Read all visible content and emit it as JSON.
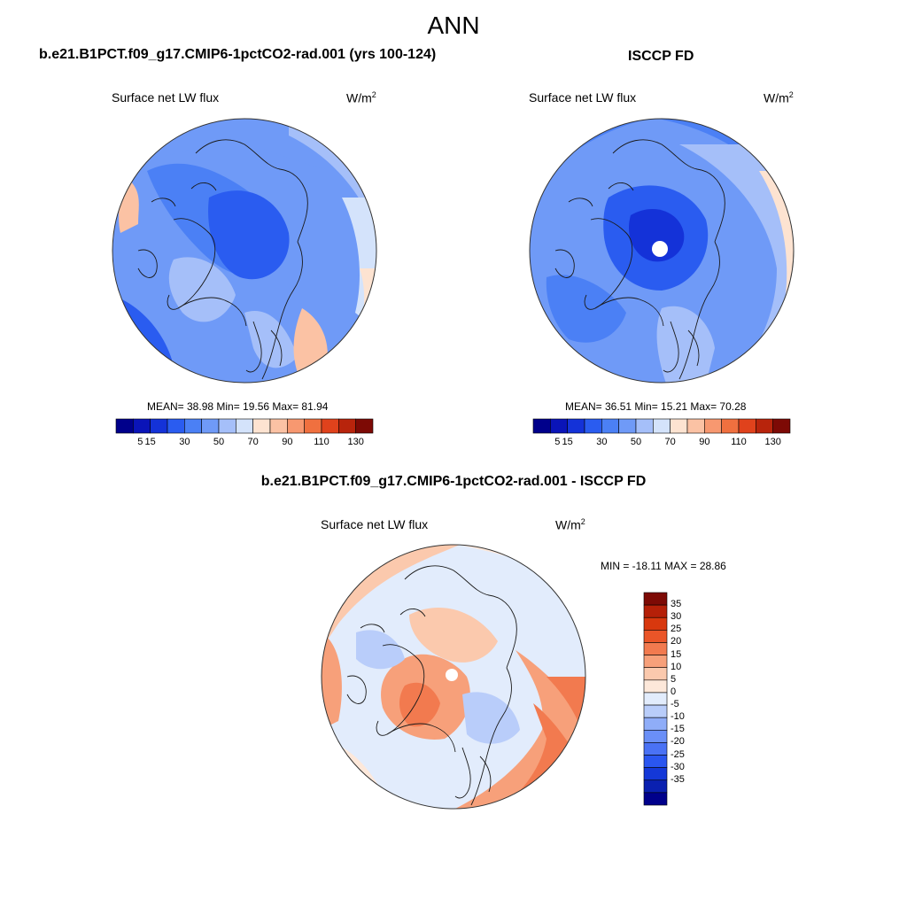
{
  "main_title": "ANN",
  "colors": {
    "abs_scale": [
      "#00008b",
      "#0a14b8",
      "#1432d8",
      "#2a5cf0",
      "#4b80f5",
      "#6f9af7",
      "#a5bff9",
      "#d4e3fb",
      "#fde3d1",
      "#fbc2a4",
      "#f79870",
      "#f0703f",
      "#e0421c",
      "#b8240c",
      "#7d0a05"
    ],
    "diff_scale": [
      "#00008b",
      "#0a20b0",
      "#1438d8",
      "#2a56f0",
      "#4a72f5",
      "#6a8ff7",
      "#8fadf8",
      "#b9cdfa",
      "#e2ecfc",
      "#fde8da",
      "#fbc9ad",
      "#f7a07a",
      "#f27a4f",
      "#ea5528",
      "#d8380e",
      "#b52008",
      "#7d0a05"
    ],
    "coastline": "#1a1a1a"
  },
  "panels": {
    "model": {
      "title": "b.e21.B1PCT.f09_g17.CMIP6-1pctCO2-rad.001 (yrs 100-124)",
      "variable": "Surface net LW flux",
      "units": "W/m",
      "units_sup": "2",
      "stats": "MEAN=  38.98  Min=  19.56  Max=  81.94"
    },
    "obs": {
      "title": "ISCCP FD",
      "variable": "Surface net LW flux",
      "units": "W/m",
      "units_sup": "2",
      "stats": "MEAN=  36.51  Min=  15.21  Max=  70.28"
    },
    "diff": {
      "title": "b.e21.B1PCT.f09_g17.CMIP6-1pctCO2-rad.001 - ISCCP FD",
      "variable": "Surface net LW flux",
      "units": "W/m",
      "units_sup": "2",
      "stats": "MIN = -18.11 MAX =  28.86"
    }
  },
  "colorbar_abs_labels": [
    "5",
    "15",
    "30",
    "50",
    "70",
    "90",
    "110",
    "130"
  ],
  "colorbar_diff_labels": [
    "35",
    "30",
    "25",
    "20",
    "15",
    "10",
    "5",
    "0",
    "-5",
    "-10",
    "-15",
    "-20",
    "-25",
    "-30",
    "-35"
  ]
}
